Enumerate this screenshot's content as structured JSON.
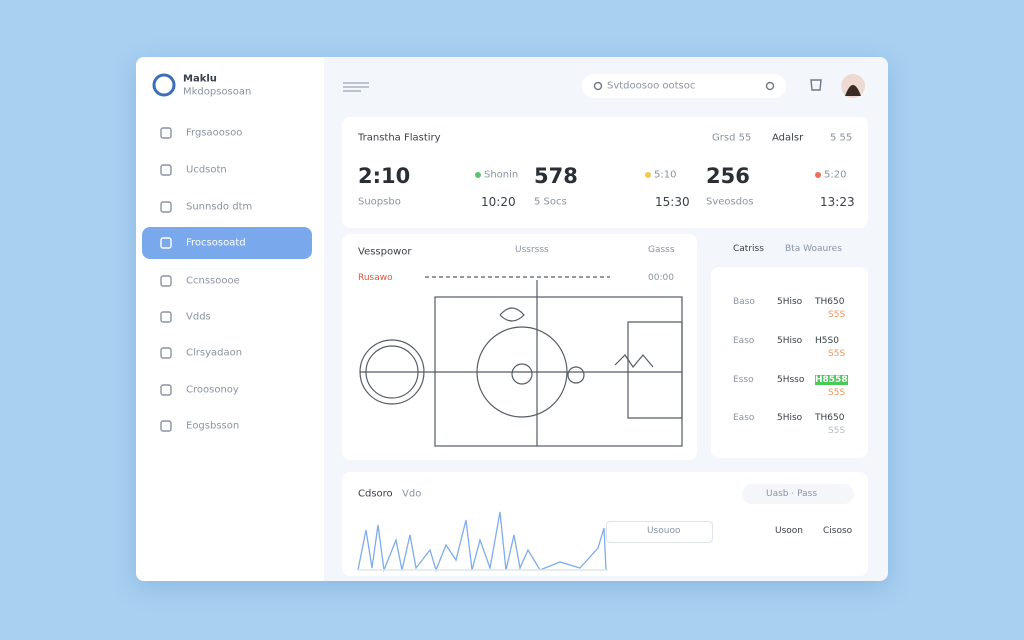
{
  "sidebar": {
    "brand": "Maklu",
    "subtitle": "Mkdopsosoan",
    "nav": [
      "Frgsaoosoo",
      "Ucdsotn",
      "Sunnsdo dtm",
      "Frocsosoatd",
      "Ccnssoooe",
      "Vdds",
      "Clrsyadaon",
      "Croosonoy",
      "Eogsbsson"
    ]
  },
  "topbar": {
    "search": "Svtdoosoo ootsoc"
  },
  "stats": {
    "title": "Transtha Flastiry",
    "tabs": [
      "Grsd 55",
      "Adalsr",
      "5 55"
    ],
    "items": [
      {
        "value": "2:10",
        "status": "Shonin",
        "label": "Suopsbo",
        "time": "10:20"
      },
      {
        "value": "578",
        "status": "5:10",
        "label": "5 Socs",
        "time": "15:30"
      },
      {
        "value": "256",
        "status": "5:20",
        "label": "Sveosdos",
        "time": "13:23"
      }
    ]
  },
  "field": {
    "title": "Vesspowor",
    "meta": "Ussrsss",
    "side": "Gasss",
    "tag": "Rusawo",
    "clock": "00:00"
  },
  "panel": {
    "title": "Catriss",
    "subtitle": "Bta  Woaures",
    "rows": [
      [
        "Baso",
        "5Hiso",
        "TH650",
        "S5S"
      ],
      [
        "Easo",
        "5Hiso",
        "H5S0",
        "S5S"
      ],
      [
        "Esso",
        "5Hsso",
        "H8558",
        "S5S"
      ],
      [
        "Easo",
        "5Hiso",
        "TH650",
        "S5S"
      ]
    ]
  },
  "activity": {
    "title": "Cdsoro",
    "sub": "Vdo",
    "filter": "Uasb · Pass",
    "button": "Usouoo",
    "cols": [
      "Usoon",
      "Cisoso"
    ]
  }
}
